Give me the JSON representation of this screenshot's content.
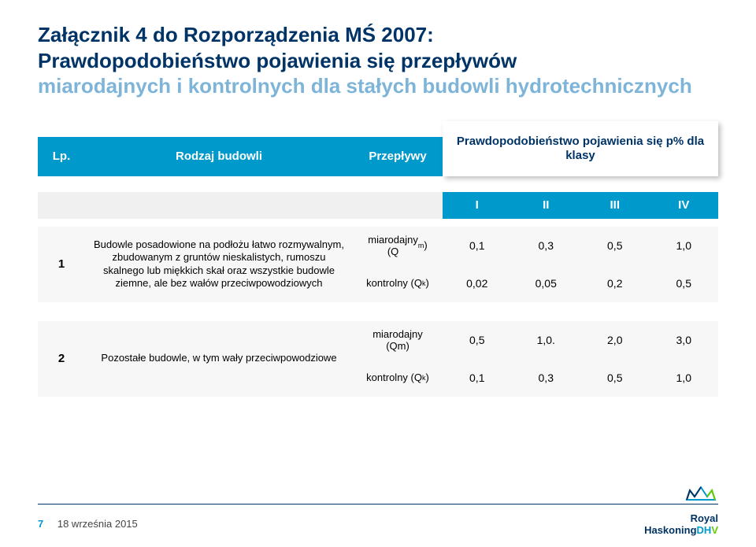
{
  "title": {
    "line1": "Załącznik 4 do Rozporządzenia MŚ 2007:",
    "line2": "Prawdopodobieństwo pojawienia się przepływów",
    "line3": "miarodajnych i kontrolnych dla stałych budowli hydrotechnicznych",
    "color_main": "#003366",
    "color_fade": "#7db4d8",
    "fontsize": 26
  },
  "table": {
    "header_bg": "#0099cc",
    "header_fg": "#ffffff",
    "prob_box_shadow": "3px 3px 6px rgba(0,0,0,0.25)",
    "row_bg": "#f7f7f7",
    "columns": {
      "lp": "Lp.",
      "rodzaj": "Rodzaj budowli",
      "przeplywy": "Przepływy",
      "prawdo": "Prawdopodobieństwo pojawienia się p% dla klasy"
    },
    "classes": [
      "I",
      "II",
      "III",
      "IV"
    ],
    "rows": [
      {
        "num": "1",
        "desc": "Budowle posadowione na podłożu łatwo rozmywalnym, zbudowanym z gruntów nieskalistych, rumoszu skalnego lub miękkich skał oraz wszystkie budowle ziemne, ale bez wałów przeciwpowodziowych",
        "flows": [
          {
            "label_html": "miarodajny<br>(Q<sub>m</sub>)",
            "label_plain": "miarodajny (Qm)",
            "values": [
              "0,1",
              "0,3",
              "0,5",
              "1,0"
            ]
          },
          {
            "label_html": "kontrolny (Q<sub>k</sub>)",
            "label_plain": "kontrolny (Qk)",
            "values": [
              "0,02",
              "0,05",
              "0,2",
              "0,5"
            ]
          }
        ]
      },
      {
        "num": "2",
        "desc": "Pozostałe budowle, w tym wały przeciwpowodziowe",
        "flows": [
          {
            "label_html": "miarodajny<br>(Qm)",
            "label_plain": "miarodajny (Qm)",
            "values": [
              "0,5",
              "1,0.",
              "2,0",
              "3,0"
            ]
          },
          {
            "label_html": "kontrolny (Q<sub>k</sub>)",
            "label_plain": "kontrolny (Qk)",
            "values": [
              "0,1",
              "0,3",
              "0,5",
              "1,0"
            ]
          }
        ]
      }
    ]
  },
  "footer": {
    "page": "7",
    "date": "18 września 2015",
    "line_color": "#003366"
  },
  "logo": {
    "brand_line1": "Royal",
    "brand_line2_parts": [
      "Haskoning",
      "DH",
      "V"
    ],
    "colors": {
      "royal": "#003366",
      "cyan": "#0099cc",
      "green": "#66cc00"
    }
  }
}
